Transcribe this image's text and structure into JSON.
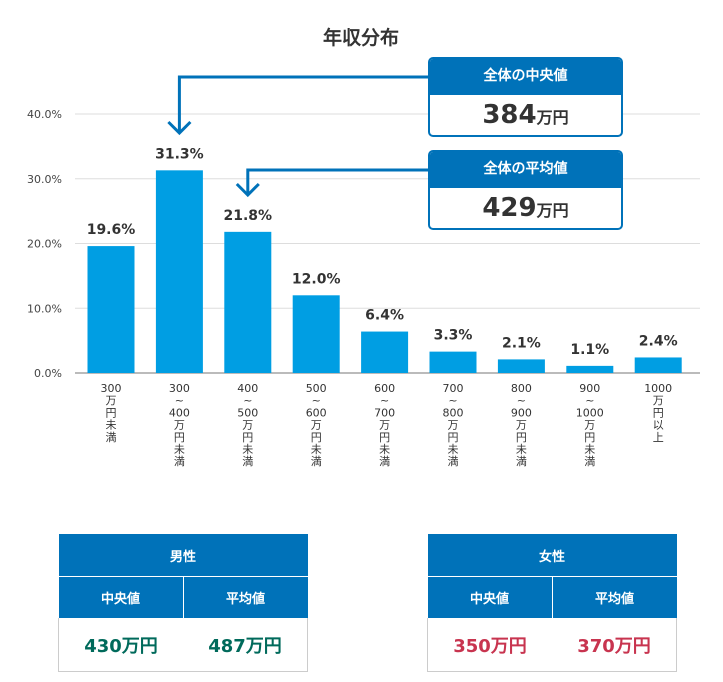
{
  "chart_data": {
    "type": "bar",
    "title": "年収分布",
    "categories": [
      "300\n万\n円\n未\n満",
      "300\n~\n400\n万\n円\n未\n満",
      "400\n~\n500\n万\n円\n未\n満",
      "500\n~\n600\n万\n円\n未\n満",
      "600\n~\n700\n万\n円\n未\n満",
      "700\n~\n800\n万\n円\n未\n満",
      "800\n~\n900\n万\n円\n未\n満",
      "900\n~\n1000\n万\n円\n未\n満",
      "1000\n万\n円\n以\n上"
    ],
    "values": [
      19.6,
      31.3,
      21.8,
      12.0,
      6.4,
      3.3,
      2.1,
      1.1,
      2.4
    ],
    "value_labels": [
      "19.6%",
      "31.3%",
      "21.8%",
      "12.0%",
      "6.4%",
      "3.3%",
      "2.1%",
      "1.1%",
      "2.4%"
    ],
    "yticks": [
      "0.0%",
      "10.0%",
      "20.0%",
      "30.0%",
      "40.0%"
    ],
    "ylim": [
      0,
      40
    ],
    "grid": true,
    "bar_color": "#009ee3"
  },
  "callouts": {
    "median": {
      "label": "全体の中央値",
      "value": "384",
      "unit": "万円",
      "category_index": 1
    },
    "mean": {
      "label": "全体の平均値",
      "value": "429",
      "unit": "万円",
      "category_index": 2
    }
  },
  "tables": {
    "male": {
      "title": "男性",
      "col1": "中央値",
      "col2": "平均値",
      "v1": "430万円",
      "v2": "487万円",
      "color": "#006a5b"
    },
    "female": {
      "title": "女性",
      "col1": "中央値",
      "col2": "平均値",
      "v1": "350万円",
      "v2": "370万円",
      "color": "#c8344f"
    }
  },
  "colors": {
    "accent": "#0072b9"
  }
}
